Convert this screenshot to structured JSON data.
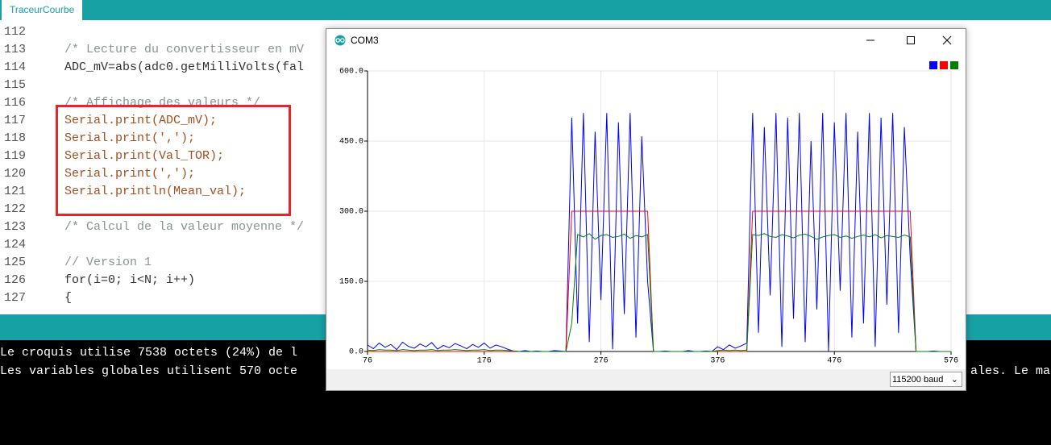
{
  "tab": "TraceurCourbe",
  "code": [
    {
      "number": "112"
    },
    {
      "number": "113",
      "text": "/* Lecture du convertisseur en mV"
    },
    {
      "number": "114",
      "text": "ADC_mV=abs(adc0.getMilliVolts(fal"
    },
    {
      "number": "115"
    },
    {
      "number": "116",
      "text": "/* Affichage des valeurs */"
    },
    {
      "number": "117",
      "text": "Serial.print(ADC_mV);"
    },
    {
      "number": "118",
      "text": "Serial.print(',');"
    },
    {
      "number": "119",
      "text": "Serial.print(Val_TOR);"
    },
    {
      "number": "120",
      "text": "Serial.print(',');"
    },
    {
      "number": "121",
      "text": "Serial.println(Mean_val);"
    },
    {
      "number": "122"
    },
    {
      "number": "123",
      "text": "/* Calcul de la valeur moyenne */"
    },
    {
      "number": "124"
    },
    {
      "number": "125",
      "text": "// Version 1"
    },
    {
      "number": "126",
      "text": "for(i=0; i<N; i++)"
    },
    {
      "number": "127",
      "text": "{"
    }
  ],
  "console": {
    "lines": [
      "Le croquis utilise 7538 octets (24%) de l",
      "Les variables globales utilisent 570 octe"
    ],
    "tail": "ales. Le ma"
  },
  "plotter": {
    "title": "COM3",
    "baud": "115200 baud",
    "chart_data": {
      "type": "line",
      "x": [
        76,
        81,
        86,
        91,
        96,
        101,
        106,
        111,
        116,
        121,
        126,
        131,
        136,
        141,
        146,
        151,
        156,
        161,
        166,
        171,
        176,
        181,
        186,
        191,
        196,
        201,
        206,
        211,
        216,
        221,
        226,
        231,
        236,
        241,
        246,
        251,
        256,
        261,
        266,
        271,
        276,
        281,
        286,
        291,
        296,
        301,
        306,
        311,
        316,
        321,
        326,
        331,
        336,
        341,
        346,
        351,
        356,
        361,
        366,
        371,
        376,
        381,
        386,
        391,
        396,
        401,
        406,
        411,
        416,
        421,
        426,
        431,
        436,
        441,
        446,
        451,
        456,
        461,
        466,
        471,
        476,
        481,
        486,
        491,
        496,
        501,
        506,
        511,
        516,
        521,
        526,
        531,
        536,
        541,
        546,
        551,
        556,
        561,
        566,
        571,
        576
      ],
      "series": [
        {
          "color": "#0000ff",
          "values": [
            14,
            6,
            18,
            9,
            15,
            4,
            20,
            11,
            7,
            16,
            10,
            19,
            5,
            13,
            8,
            17,
            12,
            6,
            15,
            9,
            18,
            7,
            14,
            10,
            5,
            1,
            0,
            2,
            0,
            1,
            0,
            0,
            2,
            1,
            0,
            500,
            60,
            510,
            20,
            470,
            110,
            510,
            5,
            490,
            80,
            510,
            30,
            460,
            150,
            0,
            0,
            1,
            0,
            0,
            0,
            2,
            0,
            0,
            1,
            0,
            10,
            4,
            14,
            7,
            12,
            18,
            510,
            40,
            480,
            120,
            510,
            10,
            500,
            70,
            510,
            20,
            450,
            90,
            510,
            0,
            490,
            130,
            510,
            30,
            470,
            60,
            510,
            10,
            500,
            100,
            510,
            40,
            480,
            200,
            0,
            0,
            0,
            1,
            0,
            0,
            0
          ]
        },
        {
          "color": "#ff0000",
          "values": [
            0,
            0,
            0,
            0,
            0,
            0,
            0,
            0,
            0,
            0,
            0,
            0,
            0,
            0,
            0,
            0,
            0,
            0,
            0,
            0,
            0,
            0,
            0,
            0,
            0,
            0,
            0,
            0,
            0,
            0,
            0,
            0,
            0,
            0,
            0,
            300,
            300,
            300,
            300,
            300,
            300,
            300,
            300,
            300,
            300,
            300,
            300,
            300,
            300,
            0,
            0,
            0,
            0,
            0,
            0,
            0,
            0,
            0,
            0,
            0,
            0,
            0,
            0,
            0,
            0,
            0,
            300,
            300,
            300,
            300,
            300,
            300,
            300,
            300,
            300,
            300,
            300,
            300,
            300,
            300,
            300,
            300,
            300,
            300,
            300,
            300,
            300,
            300,
            300,
            300,
            300,
            300,
            300,
            300,
            0,
            0,
            0,
            0,
            0,
            0,
            0
          ]
        },
        {
          "color": "#008000",
          "values": [
            3,
            2,
            4,
            3,
            3,
            2,
            4,
            3,
            2,
            3,
            3,
            4,
            2,
            3,
            3,
            4,
            3,
            2,
            3,
            3,
            4,
            2,
            3,
            3,
            2,
            1,
            0,
            0,
            0,
            0,
            0,
            0,
            0,
            0,
            0,
            60,
            250,
            245,
            252,
            240,
            248,
            250,
            244,
            246,
            251,
            242,
            248,
            245,
            250,
            0,
            0,
            0,
            0,
            0,
            0,
            0,
            0,
            0,
            0,
            0,
            2,
            3,
            2,
            3,
            2,
            3,
            250,
            248,
            252,
            246,
            244,
            250,
            247,
            243,
            249,
            251,
            246,
            240,
            245,
            248,
            250,
            244,
            247,
            242,
            246,
            249,
            245,
            250,
            243,
            248,
            246,
            244,
            249,
            245,
            0,
            0,
            0,
            0,
            0,
            0,
            0
          ]
        }
      ],
      "xlim": [
        76,
        576
      ],
      "ylim": [
        0,
        600
      ],
      "xticks": [
        76,
        176,
        276,
        376,
        476,
        576
      ],
      "yticks": [
        {
          "value": 0,
          "label": "0.0"
        },
        {
          "value": 150,
          "label": "150.0"
        },
        {
          "value": 300,
          "label": "300.0"
        },
        {
          "value": 450,
          "label": "450.0"
        },
        {
          "value": 600,
          "label": "600.0"
        }
      ],
      "grid": true
    }
  }
}
